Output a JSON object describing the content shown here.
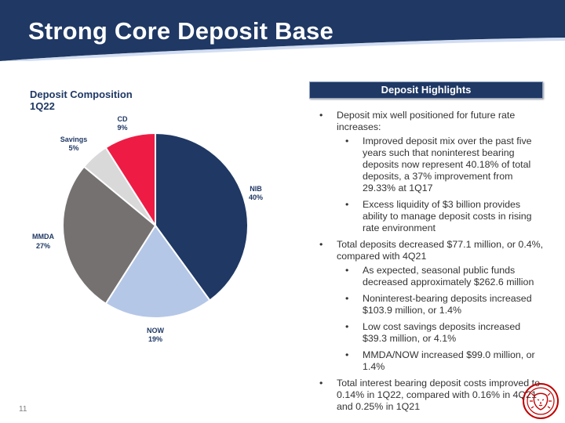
{
  "header": {
    "title": "Strong Core Deposit Base"
  },
  "chart_data": {
    "type": "pie",
    "title": "Deposit Composition\n1Q22",
    "title_lines": [
      "Deposit Composition",
      "1Q22"
    ],
    "slices": [
      {
        "name": "NIB",
        "value": 40,
        "label": "40%",
        "color": "#1f3864"
      },
      {
        "name": "NOW",
        "value": 19,
        "label": "19%",
        "color": "#b4c7e7"
      },
      {
        "name": "MMDA",
        "value": 27,
        "label": "27%",
        "color": "#767171"
      },
      {
        "name": "Savings",
        "value": 5,
        "label": "5%",
        "color": "#d9d9d9"
      },
      {
        "name": "CD",
        "value": 9,
        "label": "9%",
        "color": "#ee1c45"
      }
    ]
  },
  "highlights": {
    "heading": "Deposit Highlights",
    "b1": "Deposit mix well positioned for future rate increases:",
    "b1_s1": "Improved deposit mix over the past five years such that noninterest bearing deposits now represent 40.18% of total deposits, a 37% improvement from 29.33% at 1Q17",
    "b1_s2": "Excess liquidity of $3 billion provides ability to manage deposit costs in rising rate environment",
    "b2": "Total deposits decreased $77.1 million, or 0.4%, compared with 4Q21",
    "b2_s1": "As expected, seasonal public funds decreased approximately $262.6 million",
    "b2_s2": "Noninterest-bearing deposits increased $103.9 million, or 1.4%",
    "b2_s3": "Low cost savings deposits increased $39.3 million, or 4.1%",
    "b2_s4": "MMDA/NOW increased $99.0 million, or 1.4%",
    "b3": "Total interest bearing deposit costs improved to 0.14% in 1Q22, compared with 0.16% in 4Q21 and 0.25% in 1Q21"
  },
  "footer": {
    "page_number": "11"
  },
  "colors": {
    "navy": "#1f3864",
    "accent_red": "#c00000"
  }
}
